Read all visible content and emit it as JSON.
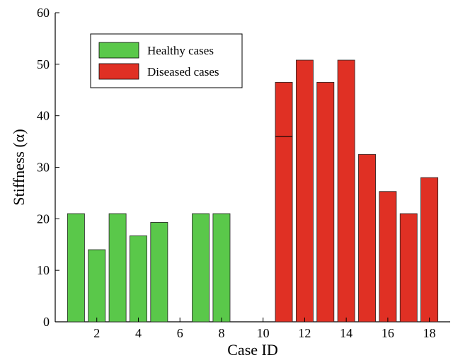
{
  "chart_data": {
    "type": "bar",
    "xlabel": "Case ID",
    "ylabel": "Stiffness (α)",
    "ylim": [
      0,
      60
    ],
    "xlim": [
      0,
      19
    ],
    "yticks": [
      0,
      10,
      20,
      30,
      40,
      50,
      60
    ],
    "xticks": [
      2,
      4,
      6,
      8,
      10,
      12,
      14,
      16,
      18
    ],
    "grid": false,
    "legend_position": "top-left",
    "series": [
      {
        "name": "Healthy cases",
        "color": "#5ac84a",
        "x": [
          1,
          2,
          3,
          4,
          5,
          7,
          8
        ],
        "values": [
          21,
          14,
          21,
          16.7,
          19.3,
          21,
          21
        ]
      },
      {
        "name": "Diseased cases",
        "color": "#e03024",
        "x": [
          11,
          12,
          13,
          14,
          15,
          16,
          17,
          18
        ],
        "values": [
          46.5,
          50.8,
          46.5,
          50.8,
          32.5,
          25.3,
          21,
          28
        ]
      }
    ],
    "annotations": [
      {
        "x": 11,
        "y": 36,
        "type": "horizontal-mark"
      }
    ]
  }
}
